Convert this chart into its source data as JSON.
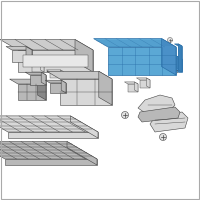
{
  "background_color": "#ffffff",
  "border_color": "#cccccc",
  "highlight_color": "#5ba8d5",
  "highlight_dark": "#2a6fa8",
  "parts_light": "#d8d8d8",
  "parts_mid": "#b8b8b8",
  "parts_dark": "#888888",
  "edge_color": "#444444",
  "figsize": [
    2.0,
    2.0
  ],
  "dpi": 100
}
